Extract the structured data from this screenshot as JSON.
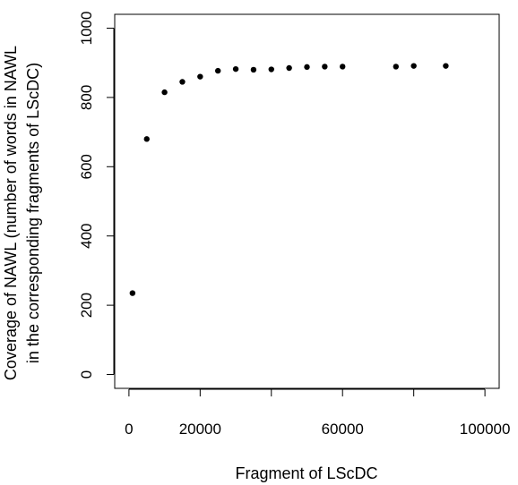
{
  "chart_data": {
    "type": "scatter",
    "xlabel": "Fragment of LScDC",
    "ylabel_lines": [
      "Coverage of NAWL (number of words in NAWL",
      "in the corresponding fragments of LScDC)"
    ],
    "xlim": [
      -4000,
      104000
    ],
    "ylim": [
      -40,
      1040
    ],
    "x_ticks": [
      0,
      20000,
      40000,
      60000,
      80000,
      100000
    ],
    "x_tick_labels": [
      "0",
      "20000",
      "",
      "60000",
      "",
      "100000"
    ],
    "y_ticks": [
      0,
      200,
      400,
      600,
      800,
      1000
    ],
    "y_tick_labels": [
      "0",
      "200",
      "400",
      "600",
      "800",
      "1000"
    ],
    "grid": false,
    "legend": "none",
    "marker_color": "#000000",
    "points": [
      {
        "x": 1000,
        "y": 235
      },
      {
        "x": 5000,
        "y": 680
      },
      {
        "x": 10000,
        "y": 815
      },
      {
        "x": 15000,
        "y": 845
      },
      {
        "x": 20000,
        "y": 860
      },
      {
        "x": 25000,
        "y": 877
      },
      {
        "x": 30000,
        "y": 882
      },
      {
        "x": 35000,
        "y": 880
      },
      {
        "x": 40000,
        "y": 881
      },
      {
        "x": 45000,
        "y": 885
      },
      {
        "x": 50000,
        "y": 888
      },
      {
        "x": 55000,
        "y": 889
      },
      {
        "x": 60000,
        "y": 889
      },
      {
        "x": 75000,
        "y": 889
      },
      {
        "x": 80000,
        "y": 891
      },
      {
        "x": 89000,
        "y": 891
      }
    ]
  }
}
